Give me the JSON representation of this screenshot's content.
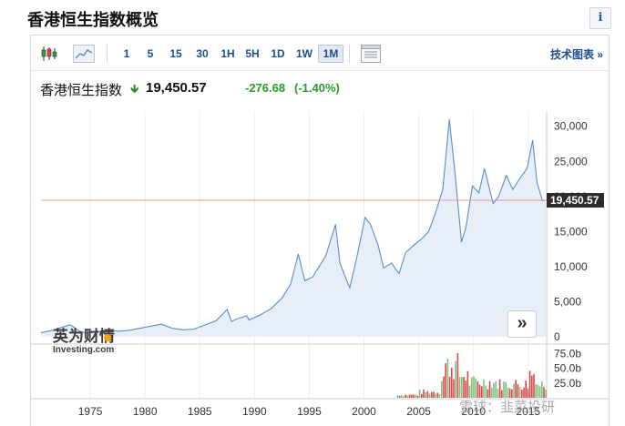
{
  "page": {
    "title": "香港恒生指数概览",
    "info_label": "i"
  },
  "toolbar": {
    "periods": [
      {
        "label": "1",
        "active": false
      },
      {
        "label": "5",
        "active": false
      },
      {
        "label": "15",
        "active": false
      },
      {
        "label": "30",
        "active": false
      },
      {
        "label": "1H",
        "active": false
      },
      {
        "label": "5H",
        "active": false
      },
      {
        "label": "1D",
        "active": false
      },
      {
        "label": "1W",
        "active": false
      },
      {
        "label": "1M",
        "active": true
      }
    ],
    "tech_chart_label": "技术图表 »",
    "icons": [
      "candlestick-icon",
      "area-chart-icon",
      "table-icon"
    ]
  },
  "quote": {
    "name": "香港恒生指数",
    "price": "19,450.57",
    "change": "-276.68",
    "change_pct": "(-1.40%)",
    "direction": "down",
    "color_down": "#2a9a2a"
  },
  "chart_data": {
    "type": "area",
    "x_ticks": [
      "1975",
      "1980",
      "1985",
      "1990",
      "1995",
      "2000",
      "2005",
      "2010",
      "2015"
    ],
    "y_ticks": [
      "30,000",
      "25,000",
      "20,000",
      "15,000",
      "10,000",
      "5,000",
      "0"
    ],
    "ylim": [
      0,
      31000
    ],
    "last_value_label": "19,450.57",
    "last_value": 19450.57,
    "series": [
      {
        "points": [
          [
            1970.5,
            600
          ],
          [
            1971.5,
            900
          ],
          [
            1972.5,
            1400
          ],
          [
            1973.2,
            1700
          ],
          [
            1974.0,
            800
          ],
          [
            1974.8,
            500
          ],
          [
            1975.5,
            700
          ],
          [
            1976.5,
            900
          ],
          [
            1977.5,
            800
          ],
          [
            1978.5,
            900
          ],
          [
            1979.5,
            1200
          ],
          [
            1980.5,
            1500
          ],
          [
            1981.5,
            1800
          ],
          [
            1982.5,
            1200
          ],
          [
            1983.5,
            1000
          ],
          [
            1984.5,
            1100
          ],
          [
            1985.5,
            1700
          ],
          [
            1986.5,
            2300
          ],
          [
            1987.5,
            3900
          ],
          [
            1987.9,
            2200
          ],
          [
            1988.5,
            2600
          ],
          [
            1989.3,
            3000
          ],
          [
            1989.5,
            2400
          ],
          [
            1990.5,
            3100
          ],
          [
            1991.5,
            4000
          ],
          [
            1992.5,
            5500
          ],
          [
            1993.3,
            7500
          ],
          [
            1994.0,
            11800
          ],
          [
            1994.6,
            8000
          ],
          [
            1995.3,
            8500
          ],
          [
            1995.9,
            10000
          ],
          [
            1996.5,
            11500
          ],
          [
            1997.4,
            16000
          ],
          [
            1997.8,
            10500
          ],
          [
            1998.3,
            8500
          ],
          [
            1998.7,
            7000
          ],
          [
            1999.3,
            11000
          ],
          [
            2000.1,
            17000
          ],
          [
            2000.6,
            16000
          ],
          [
            2001.3,
            13000
          ],
          [
            2001.8,
            9800
          ],
          [
            2002.5,
            10500
          ],
          [
            2003.2,
            9000
          ],
          [
            2003.8,
            12000
          ],
          [
            2004.5,
            13000
          ],
          [
            2005.3,
            14000
          ],
          [
            2005.9,
            15000
          ],
          [
            2006.5,
            17500
          ],
          [
            2007.2,
            21000
          ],
          [
            2007.8,
            31000
          ],
          [
            2008.3,
            23500
          ],
          [
            2008.9,
            13500
          ],
          [
            2009.3,
            15500
          ],
          [
            2009.9,
            21500
          ],
          [
            2010.5,
            20500
          ],
          [
            2011.0,
            24000
          ],
          [
            2011.8,
            19000
          ],
          [
            2012.3,
            20000
          ],
          [
            2013.0,
            23000
          ],
          [
            2013.6,
            21000
          ],
          [
            2014.2,
            22500
          ],
          [
            2014.9,
            24000
          ],
          [
            2015.4,
            28000
          ],
          [
            2015.8,
            22000
          ],
          [
            2016.3,
            19400
          ],
          [
            2016.6,
            19450.57
          ]
        ]
      }
    ],
    "volume": {
      "y_ticks": [
        "75.0b",
        "50.0b",
        "25.0b"
      ],
      "ylim": [
        0,
        85
      ],
      "bars_from": 2003.0
    }
  },
  "footer": {
    "brand_primary": "英为财情",
    "brand_secondary": "Investing.com",
    "watermark": "雪球：韭菜投研",
    "nav_label": "»"
  },
  "colors": {
    "line": "#5b8ecb",
    "area": "#e7eef7",
    "hline": "#e89a9a",
    "vol_up": "#7ec07e",
    "vol_down": "#d94848"
  }
}
